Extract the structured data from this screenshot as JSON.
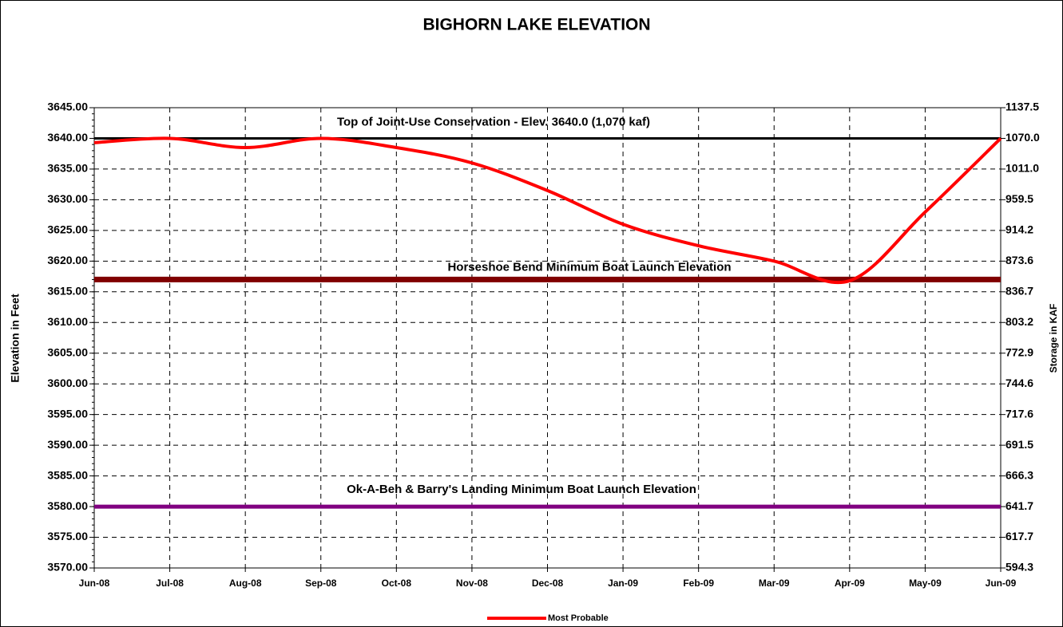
{
  "chart_data": {
    "type": "line",
    "title": "BIGHORN LAKE ELEVATION",
    "y_label": "Elevation in Feet",
    "y2_label": "Storage in KAF",
    "categories": [
      "Jun-08",
      "Jul-08",
      "Aug-08",
      "Sep-08",
      "Oct-08",
      "Nov-08",
      "Dec-08",
      "Jan-09",
      "Feb-09",
      "Mar-09",
      "Apr-09",
      "May-09",
      "Jun-09"
    ],
    "series": [
      {
        "name": "Most Probable",
        "color": "#ff0000",
        "values": [
          3639.3,
          3640.0,
          3638.5,
          3640.0,
          3638.5,
          3636.0,
          3631.5,
          3626.0,
          3622.5,
          3620.0,
          3616.8,
          3628.0,
          3640.0
        ]
      }
    ],
    "reference_lines": [
      {
        "name": "Top of Joint-Use Conservation - Elev. 3640.0 (1,070 kaf)",
        "value": 3640,
        "color": "#000000"
      },
      {
        "name": "Horseshoe Bend Minimum Boat Launch Elevation",
        "value": 3617,
        "color": "#800000"
      },
      {
        "name": "Ok-A-Beh & Barry's Landing Minimum Boat Launch Elevation",
        "value": 3580,
        "color": "#800080"
      }
    ],
    "ylim": [
      3570,
      3645
    ],
    "yticks": [
      {
        "value": 3570,
        "label": "3570.00"
      },
      {
        "value": 3575,
        "label": "3575.00"
      },
      {
        "value": 3580,
        "label": "3580.00"
      },
      {
        "value": 3585,
        "label": "3585.00"
      },
      {
        "value": 3590,
        "label": "3590.00"
      },
      {
        "value": 3595,
        "label": "3595.00"
      },
      {
        "value": 3600,
        "label": "3600.00"
      },
      {
        "value": 3605,
        "label": "3605.00"
      },
      {
        "value": 3610,
        "label": "3610.00"
      },
      {
        "value": 3615,
        "label": "3615.00"
      },
      {
        "value": 3620,
        "label": "3620.00"
      },
      {
        "value": 3625,
        "label": "3625.00"
      },
      {
        "value": 3630,
        "label": "3630.00"
      },
      {
        "value": 3635,
        "label": "3635.00"
      },
      {
        "value": 3640,
        "label": "3640.00"
      },
      {
        "value": 3645,
        "label": "3645.00"
      }
    ],
    "y2ticks": [
      594.3,
      617.7,
      641.7,
      666.3,
      691.5,
      717.6,
      744.6,
      772.9,
      803.2,
      836.7,
      873.6,
      914.2,
      959.5,
      {
        "value": 1011,
        "label": "1011.0"
      },
      {
        "value": 1070,
        "label": "1070.0"
      },
      1137.5
    ],
    "grid": true,
    "legend": "bottom"
  }
}
